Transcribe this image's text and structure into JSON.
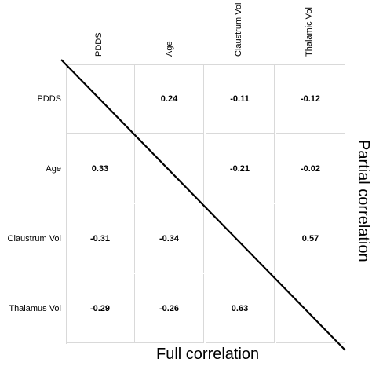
{
  "chart_data": {
    "type": "table",
    "variables_columns": [
      "PDDS",
      "Age",
      "Claustrum Vol",
      "Thalamic Vol"
    ],
    "variables_rows": [
      "PDDS",
      "Age",
      "Claustrum Vol",
      "Thalamus Vol"
    ],
    "cells": [
      [
        "",
        "0.24",
        "-0.11",
        "-0.12"
      ],
      [
        "0.33",
        "",
        "-0.21",
        "-0.02"
      ],
      [
        "-0.31",
        "-0.34",
        "",
        "0.57"
      ],
      [
        "-0.29",
        "-0.26",
        "0.63",
        ""
      ]
    ],
    "upper_triangle_title": "Partial correlation",
    "lower_triangle_title": "Full correlation",
    "diagonal_line": true
  }
}
